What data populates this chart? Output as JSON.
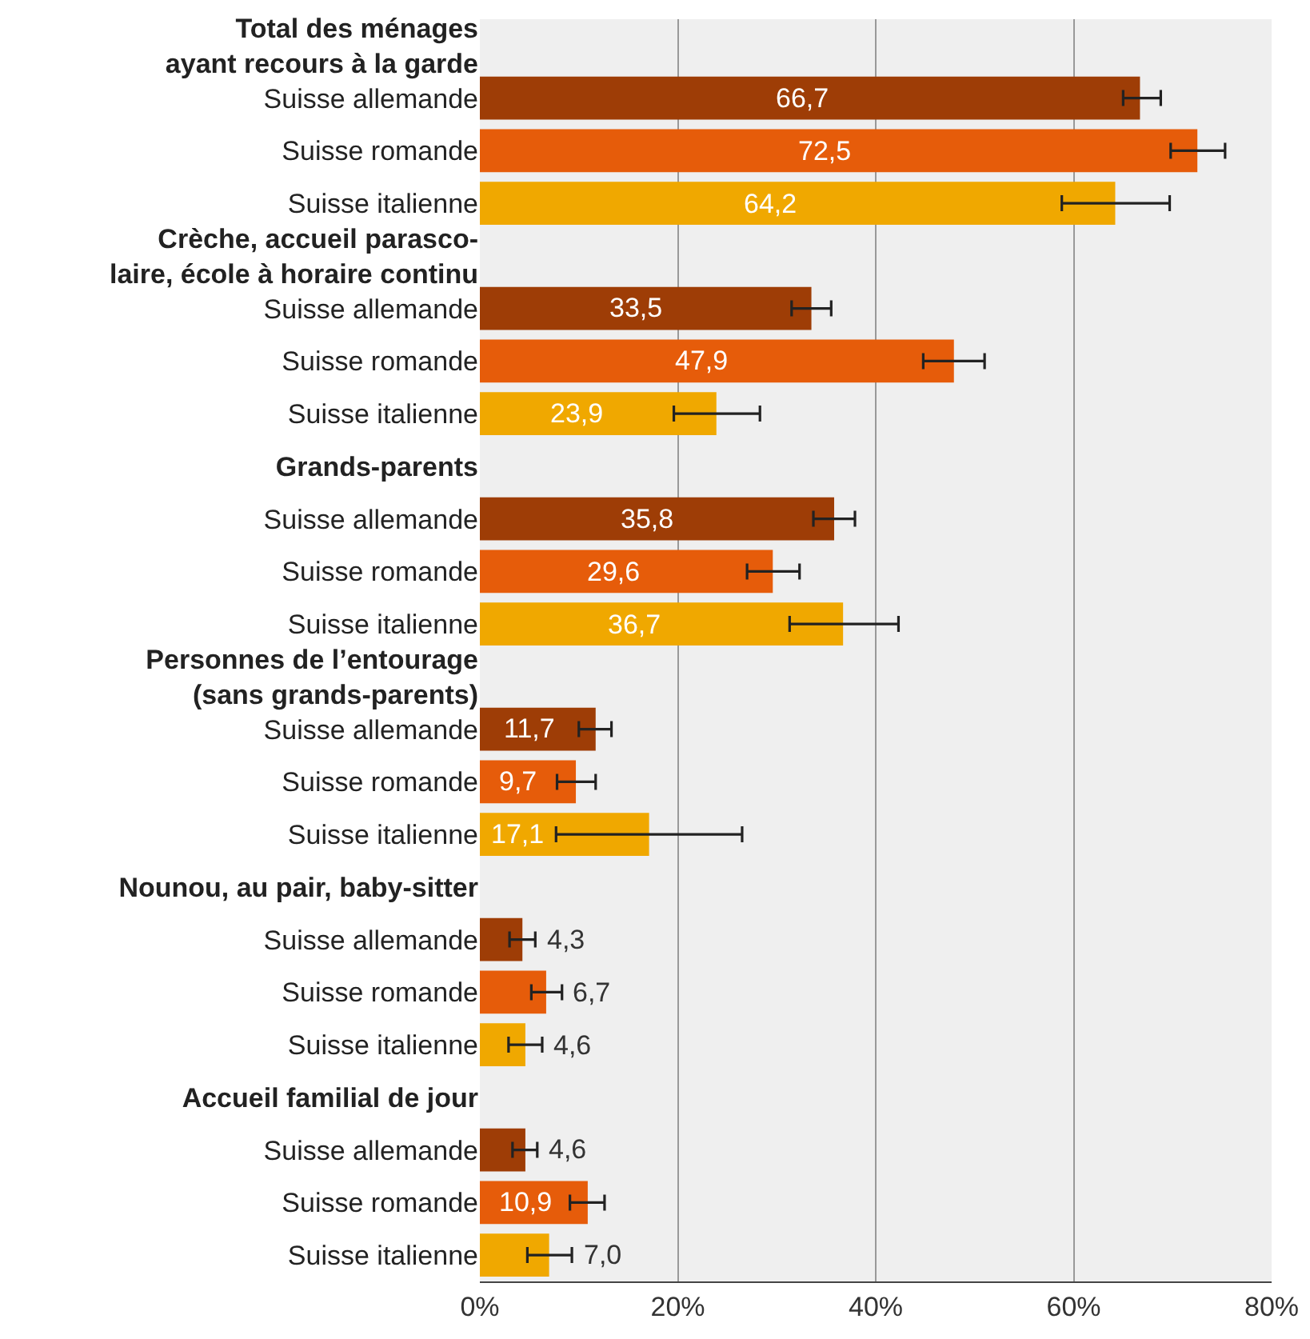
{
  "chart_data": {
    "type": "bar",
    "orientation": "horizontal",
    "categories": [
      "Total des ménages\nayant recours à la garde",
      "Suisse allemande",
      "Suisse romande",
      "Suisse italienne",
      "Crèche, accueil parasco-\nlaire, école à horaire continu",
      "Suisse allemande",
      "Suisse romande",
      "Suisse italienne",
      "Grands-parents",
      "Suisse allemande",
      "Suisse romande",
      "Suisse italienne",
      "Personnes de l’entourage\n(sans grands-parents)",
      "Suisse allemande",
      "Suisse romande",
      "Suisse italienne",
      "Nounou, au pair, baby-sitter",
      "Suisse allemande",
      "Suisse romande",
      "Suisse italienne",
      "Accueil familial de jour",
      "Suisse allemande",
      "Suisse romande",
      "Suisse italienne"
    ],
    "values": [
      null,
      66.7,
      72.5,
      64.2,
      null,
      33.5,
      47.9,
      23.9,
      null,
      35.8,
      29.6,
      36.7,
      null,
      11.7,
      9.7,
      17.1,
      null,
      4.3,
      6.7,
      4.6,
      null,
      4.6,
      10.9,
      7.0
    ],
    "colors": [
      null,
      "#9e3d06",
      "#e65c0a",
      "#f0a800",
      null,
      "#9e3d06",
      "#e65c0a",
      "#f0a800",
      null,
      "#9e3d06",
      "#e65c0a",
      "#f0a800",
      null,
      "#9e3d06",
      "#e65c0a",
      "#f0a800",
      null,
      "#9e3d06",
      "#e65c0a",
      "#f0a800",
      null,
      "#9e3d06",
      "#e65c0a",
      "#f0a800"
    ],
    "value_labels": [
      null,
      "66,7",
      "72,5",
      "64,2",
      null,
      "33,5",
      "47,9",
      "23,9",
      null,
      "35,8",
      "29,6",
      "36,7",
      null,
      "11,7",
      "9,7",
      "17,1",
      null,
      "4,3",
      "6,7",
      "4,6",
      null,
      "4,6",
      "10,9",
      "7,0"
    ],
    "errors": [
      null,
      [
        65,
        68.8
      ],
      [
        69.8,
        75.3
      ],
      [
        58.8,
        69.7
      ],
      null,
      [
        31.5,
        35.5
      ],
      [
        44.8,
        51
      ],
      [
        19.6,
        28.3
      ],
      null,
      [
        33.7,
        37.9
      ],
      [
        27,
        32.3
      ],
      [
        31.3,
        42.3
      ],
      null,
      [
        10,
        13.3
      ],
      [
        7.8,
        11.7
      ],
      [
        7.7,
        26.5
      ],
      null,
      [
        3,
        5.6
      ],
      [
        5.2,
        8.3
      ],
      [
        2.9,
        6.3
      ],
      null,
      [
        3.3,
        5.8
      ],
      [
        9.1,
        12.6
      ],
      [
        4.8,
        9.3
      ]
    ],
    "xlim": [
      0,
      80
    ],
    "xticks": [
      {
        "value": 0,
        "label": "0%"
      },
      {
        "value": 20,
        "label": "20%"
      },
      {
        "value": 40,
        "label": "40%"
      },
      {
        "value": 60,
        "label": "60%"
      },
      {
        "value": 80,
        "label": "80%"
      }
    ],
    "grid": "x",
    "legend": false
  }
}
